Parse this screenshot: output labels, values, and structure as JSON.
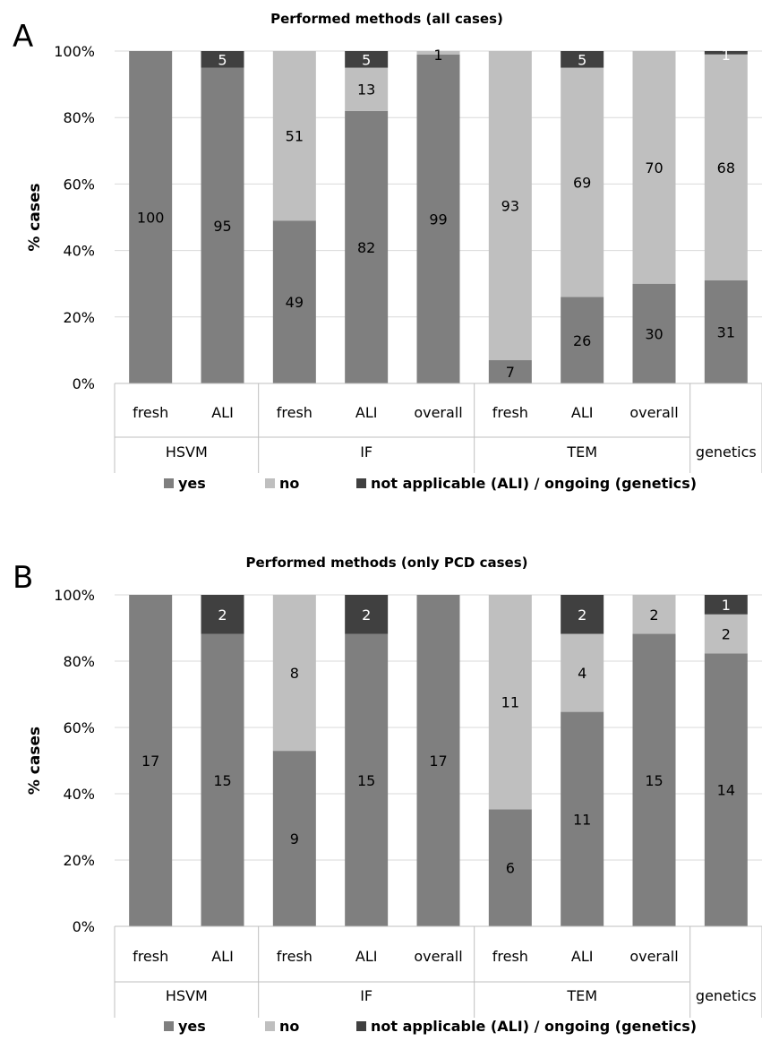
{
  "colors": {
    "yes": "#7f7f7f",
    "no": "#bfbfbf",
    "na": "#404040",
    "grid": "#d9d9d9",
    "axis": "#bfbfbf"
  },
  "chart_data": [
    {
      "type": "bar",
      "stacked": true,
      "panel": "A",
      "title": "Performed methods (all cases)",
      "ylabel": "% cases",
      "ylim": [
        0,
        100
      ],
      "yticks": [
        "0%",
        "20%",
        "40%",
        "60%",
        "80%",
        "100%"
      ],
      "categories": [
        "fresh",
        "ALI",
        "fresh",
        "ALI",
        "overall",
        "fresh",
        "ALI",
        "overall",
        ""
      ],
      "groups": [
        {
          "label": "HSVM",
          "span": 2
        },
        {
          "label": "IF",
          "span": 3
        },
        {
          "label": "TEM",
          "span": 3
        },
        {
          "label": "genetics",
          "span": 1
        }
      ],
      "series": [
        {
          "name": "yes",
          "values": [
            100,
            95,
            49,
            82,
            99,
            7,
            26,
            30,
            31
          ]
        },
        {
          "name": "no",
          "values": [
            0,
            0,
            51,
            13,
            1,
            93,
            69,
            70,
            68
          ]
        },
        {
          "name": "not applicable (ALI) / ongoing (genetics)",
          "values": [
            0,
            5,
            0,
            5,
            0,
            0,
            5,
            0,
            1
          ]
        }
      ],
      "labels": [
        [
          "100",
          "95",
          "49",
          "82",
          "99",
          "7",
          "26",
          "30",
          "31"
        ],
        [
          "",
          "",
          "51",
          "13",
          "1",
          "93",
          "69",
          "70",
          "68"
        ],
        [
          "",
          "5",
          "",
          "5",
          "",
          "",
          "5",
          "",
          "1"
        ]
      ],
      "legend": "bottom"
    },
    {
      "type": "bar",
      "stacked": true,
      "panel": "B",
      "title": "Performed methods (only PCD cases)",
      "ylabel": "% cases",
      "ylim": [
        0,
        100
      ],
      "yticks": [
        "0%",
        "20%",
        "40%",
        "60%",
        "80%",
        "100%"
      ],
      "categories": [
        "fresh",
        "ALI",
        "fresh",
        "ALI",
        "overall",
        "fresh",
        "ALI",
        "overall",
        ""
      ],
      "groups": [
        {
          "label": "HSVM",
          "span": 2
        },
        {
          "label": "IF",
          "span": 3
        },
        {
          "label": "TEM",
          "span": 3
        },
        {
          "label": "genetics",
          "span": 1
        }
      ],
      "series": [
        {
          "name": "yes",
          "values": [
            17,
            15,
            9,
            15,
            17,
            6,
            11,
            15,
            14
          ]
        },
        {
          "name": "no",
          "values": [
            0,
            0,
            8,
            0,
            0,
            11,
            4,
            2,
            2
          ]
        },
        {
          "name": "not applicable (ALI) / ongoing (genetics)",
          "values": [
            0,
            2,
            0,
            2,
            0,
            0,
            2,
            0,
            1
          ]
        }
      ],
      "labels": [
        [
          "17",
          "15",
          "9",
          "15",
          "17",
          "6",
          "11",
          "15",
          "14"
        ],
        [
          "",
          "",
          "8",
          "",
          "",
          "11",
          "4",
          "2",
          "2"
        ],
        [
          "",
          "2",
          "",
          "2",
          "",
          "",
          "2",
          "",
          "1"
        ]
      ],
      "legend": "bottom"
    }
  ]
}
